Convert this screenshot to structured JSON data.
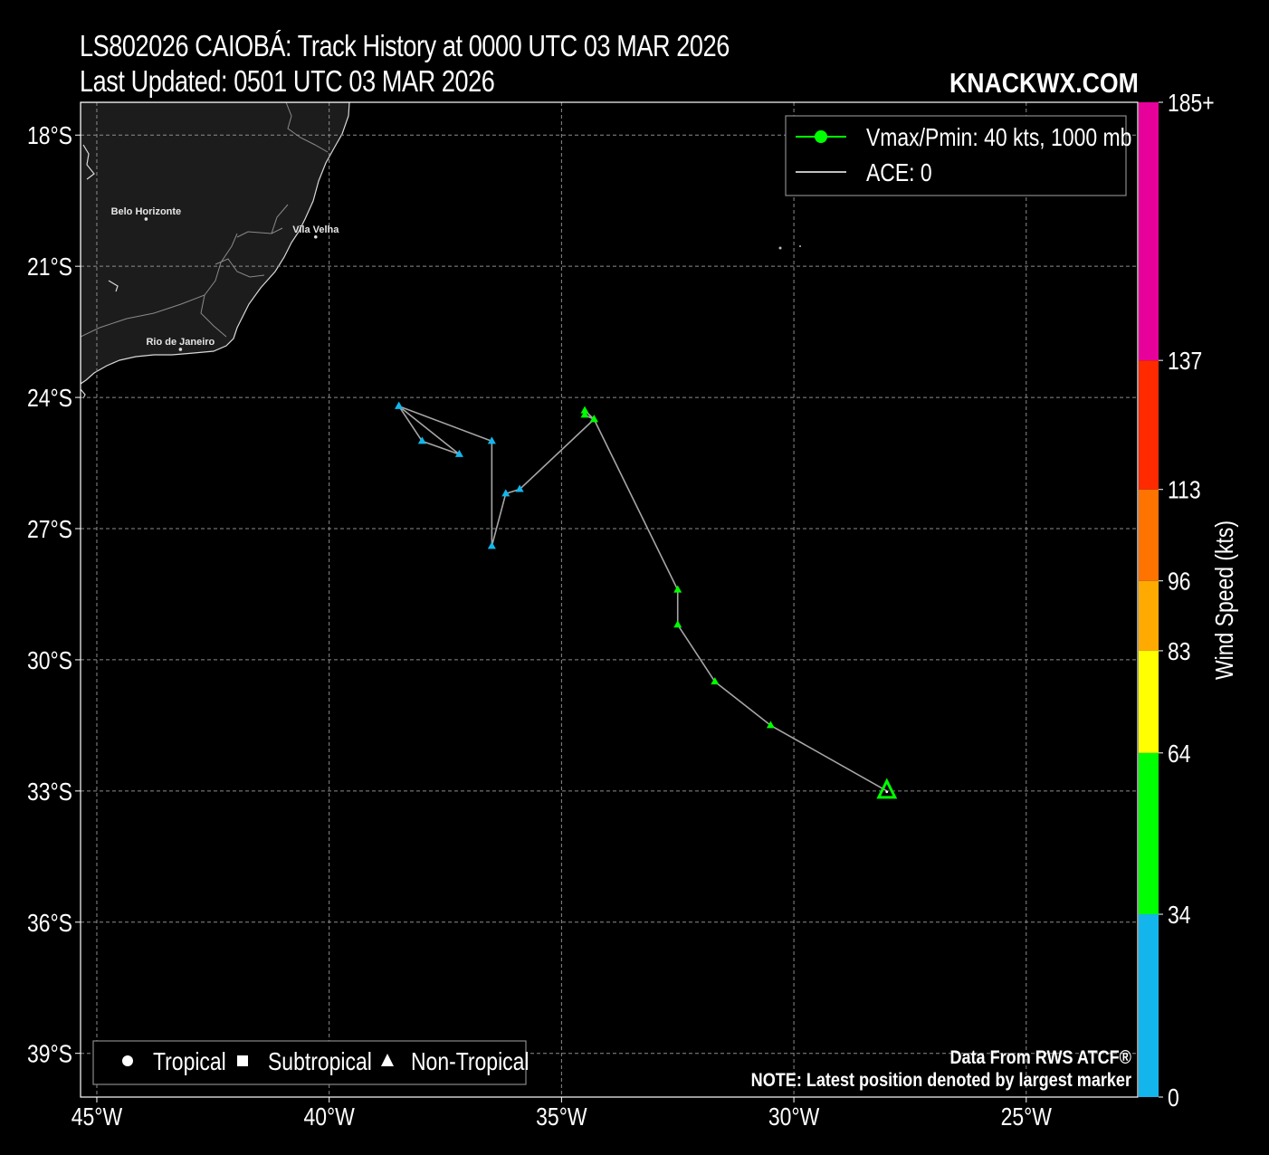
{
  "header": {
    "title": "LS802026 CAIOBÁ: Track History at 0000 UTC 03 MAR 2026",
    "subtitle": "Last Updated: 0501 UTC 03 MAR 2026",
    "brand": "KNACKWX.COM"
  },
  "axes": {
    "lon_ticks": [
      "45°W",
      "40°W",
      "35°W",
      "30°W",
      "25°W"
    ],
    "lat_ticks": [
      "18°S",
      "21°S",
      "24°S",
      "27°S",
      "30°S",
      "33°S",
      "36°S",
      "39°S"
    ],
    "lon_range": [
      -45.35,
      -22.6
    ],
    "lat_range": [
      -17.25,
      -40.0
    ]
  },
  "legend_top": {
    "vmax_label": "Vmax/Pmin: 40 kts, 1000 mb",
    "ace_label": "ACE: 0"
  },
  "legend_bottom": {
    "tropical": "Tropical",
    "subtropical": "Subtropical",
    "non_tropical": "Non-Tropical"
  },
  "cities": [
    {
      "name": "Belo Horizonte",
      "lon": -43.94,
      "lat": -19.92
    },
    {
      "name": "Vila Velha",
      "lon": -40.29,
      "lat": -20.33
    },
    {
      "name": "Rio de Janeiro",
      "lon": -43.2,
      "lat": -22.9
    }
  ],
  "colorbar": {
    "label": "Wind Speed (kts)",
    "ticks": [
      "0",
      "34",
      "64",
      "83",
      "96",
      "113",
      "137",
      "185+"
    ],
    "bands": [
      {
        "from": 0,
        "to": 34,
        "color": "#13b6ec"
      },
      {
        "from": 34,
        "to": 64,
        "color": "#00ff00"
      },
      {
        "from": 64,
        "to": 83,
        "color": "#ffff00"
      },
      {
        "from": 83,
        "to": 96,
        "color": "#ffaa00"
      },
      {
        "from": 96,
        "to": 113,
        "color": "#ff7300"
      },
      {
        "from": 113,
        "to": 137,
        "color": "#ff2a00"
      },
      {
        "from": 137,
        "to": 185,
        "color": "#e8009b"
      }
    ]
  },
  "footer": {
    "source": "Data From RWS ATCF®",
    "note": "NOTE: Latest position denoted by largest marker"
  },
  "track": [
    {
      "lon": -38.5,
      "lat": -24.2,
      "kts": 25
    },
    {
      "lon": -38.0,
      "lat": -25.0,
      "kts": 25
    },
    {
      "lon": -37.2,
      "lat": -25.3,
      "kts": 25
    },
    {
      "lon": -38.5,
      "lat": -24.2,
      "kts": 25
    },
    {
      "lon": -36.5,
      "lat": -25.0,
      "kts": 25
    },
    {
      "lon": -36.5,
      "lat": -27.4,
      "kts": 25
    },
    {
      "lon": -36.2,
      "lat": -26.2,
      "kts": 25
    },
    {
      "lon": -35.9,
      "lat": -26.1,
      "kts": 25
    },
    {
      "lon": -34.3,
      "lat": -24.5,
      "kts": 35
    },
    {
      "lon": -34.5,
      "lat": -24.4,
      "kts": 35
    },
    {
      "lon": -34.5,
      "lat": -24.3,
      "kts": 35
    },
    {
      "lon": -34.3,
      "lat": -24.5,
      "kts": 35
    },
    {
      "lon": -32.5,
      "lat": -28.4,
      "kts": 35
    },
    {
      "lon": -32.5,
      "lat": -29.2,
      "kts": 35
    },
    {
      "lon": -31.7,
      "lat": -30.5,
      "kts": 35
    },
    {
      "lon": -30.5,
      "lat": -31.5,
      "kts": 40
    },
    {
      "lon": -28.0,
      "lat": -33.0,
      "kts": 40
    }
  ]
}
